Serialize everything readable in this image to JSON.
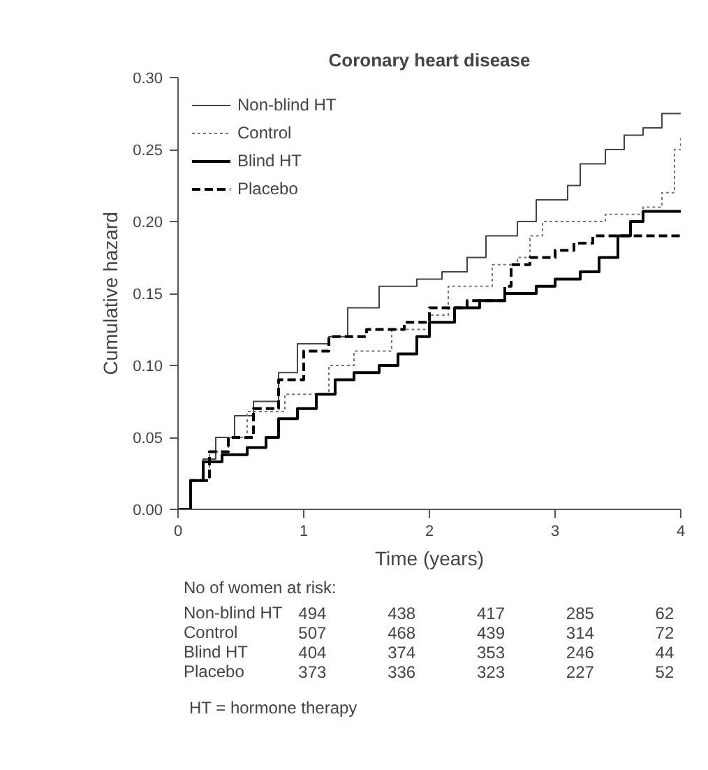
{
  "chart_data": {
    "type": "step",
    "title": "Coronary heart disease",
    "xlabel": "Time (years)",
    "ylabel": "Cumulative hazard",
    "xlim": [
      0,
      4
    ],
    "xticks": [
      0,
      1,
      2,
      3,
      4
    ],
    "ylim": [
      0,
      0.3
    ],
    "yticks": [
      {
        "value": 0,
        "label": "0.00"
      },
      {
        "value": 0.05,
        "label": "0.05"
      },
      {
        "value": 0.1,
        "label": "0.10"
      },
      {
        "value": 0.15,
        "label": "0.15"
      },
      {
        "value": 0.2,
        "label": "0.20"
      },
      {
        "value": 0.25,
        "label": "0.25"
      },
      {
        "value": 0.3,
        "label": "0.30"
      }
    ],
    "legend": "top left",
    "grid": false,
    "marker": "none",
    "series": [
      {
        "name": "Non-blind HT",
        "color": "#444444",
        "line_style": "solid",
        "x": [
          0,
          0.1,
          0.2,
          0.3,
          0.45,
          0.6,
          0.8,
          0.95,
          1.2,
          1.35,
          1.6,
          1.9,
          2.1,
          2.3,
          2.45,
          2.7,
          2.85,
          3.1,
          3.2,
          3.4,
          3.55,
          3.7,
          3.85,
          4.0
        ],
        "values": [
          0,
          0.02,
          0.035,
          0.05,
          0.065,
          0.075,
          0.095,
          0.115,
          0.12,
          0.14,
          0.155,
          0.16,
          0.165,
          0.175,
          0.19,
          0.2,
          0.215,
          0.225,
          0.24,
          0.25,
          0.26,
          0.265,
          0.275,
          0.275
        ]
      },
      {
        "name": "Control",
        "color": "#777777",
        "line_style": "dotted",
        "x": [
          0,
          0.1,
          0.25,
          0.4,
          0.55,
          0.85,
          1.2,
          1.4,
          1.7,
          2.0,
          2.15,
          2.5,
          2.7,
          2.8,
          2.9,
          3.4,
          3.7,
          3.85,
          3.95,
          4.0
        ],
        "values": [
          0,
          0.02,
          0.04,
          0.05,
          0.068,
          0.08,
          0.1,
          0.11,
          0.125,
          0.135,
          0.155,
          0.17,
          0.175,
          0.19,
          0.2,
          0.205,
          0.21,
          0.22,
          0.25,
          0.258
        ]
      },
      {
        "name": "Blind HT",
        "color": "#000000",
        "line_style": "solid",
        "x": [
          0,
          0.1,
          0.2,
          0.35,
          0.55,
          0.7,
          0.8,
          0.95,
          1.1,
          1.25,
          1.4,
          1.6,
          1.75,
          1.9,
          2.0,
          2.2,
          2.4,
          2.6,
          2.85,
          3.0,
          3.2,
          3.35,
          3.5,
          3.6,
          3.7,
          4.0
        ],
        "values": [
          0,
          0.02,
          0.033,
          0.038,
          0.043,
          0.05,
          0.063,
          0.07,
          0.08,
          0.09,
          0.095,
          0.1,
          0.108,
          0.12,
          0.13,
          0.14,
          0.145,
          0.15,
          0.155,
          0.16,
          0.165,
          0.175,
          0.19,
          0.2,
          0.207,
          0.207
        ]
      },
      {
        "name": "Placebo",
        "color": "#000000",
        "line_style": "dashed",
        "x": [
          0,
          0.1,
          0.25,
          0.4,
          0.6,
          0.8,
          1.0,
          1.2,
          1.5,
          1.8,
          2.0,
          2.3,
          2.6,
          2.65,
          2.8,
          3.0,
          3.15,
          3.3,
          4.0
        ],
        "values": [
          0,
          0.02,
          0.04,
          0.05,
          0.07,
          0.09,
          0.11,
          0.12,
          0.125,
          0.13,
          0.14,
          0.145,
          0.155,
          0.17,
          0.175,
          0.18,
          0.185,
          0.19,
          0.19
        ]
      }
    ],
    "annotations": [
      "No of women at risk:",
      "Non-blind HT 494 438 417 285 62",
      "Control 507 468 439 314 72",
      "Blind HT 404 374 353 246 44",
      "Placebo 373 336 323 227 52",
      "HT = hormone therapy"
    ]
  }
}
